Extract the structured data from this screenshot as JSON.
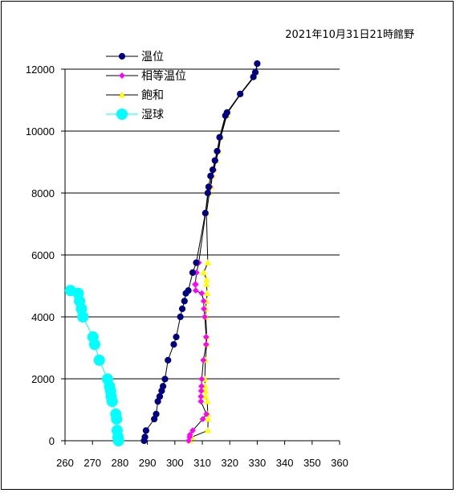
{
  "chart_data": {
    "type": "scatter",
    "title": "2021年10月31日21時館野",
    "xlabel": "",
    "ylabel": "",
    "xlim": [
      260,
      360
    ],
    "ylim": [
      0,
      12000
    ],
    "xticks": [
      "260",
      "270",
      "280",
      "290",
      "300",
      "310",
      "320",
      "330",
      "340",
      "350",
      "360"
    ],
    "yticks": [
      "0",
      "2000",
      "4000",
      "6000",
      "8000",
      "10000",
      "12000"
    ],
    "grid": "horizontal",
    "legend_position": "top-left",
    "series": [
      {
        "name": "温位",
        "color": "#000080",
        "marker": "circle",
        "points": [
          [
            288.8,
            0
          ],
          [
            289.1,
            120
          ],
          [
            289.5,
            330
          ],
          [
            292.5,
            700
          ],
          [
            293.2,
            860
          ],
          [
            293.8,
            1270
          ],
          [
            294.5,
            1430
          ],
          [
            295.2,
            1610
          ],
          [
            295.7,
            1760
          ],
          [
            296.4,
            1990
          ],
          [
            297.5,
            2600
          ],
          [
            299.6,
            3110
          ],
          [
            300.5,
            3350
          ],
          [
            302.0,
            4000
          ],
          [
            302.7,
            4260
          ],
          [
            303.5,
            4510
          ],
          [
            304.0,
            4760
          ],
          [
            304.9,
            4850
          ],
          [
            306.5,
            5430
          ],
          [
            307.8,
            5750
          ],
          [
            311.1,
            7350
          ],
          [
            312.0,
            8000
          ],
          [
            312.3,
            8200
          ],
          [
            313.0,
            8550
          ],
          [
            313.8,
            8750
          ],
          [
            314.6,
            9050
          ],
          [
            315.4,
            9350
          ],
          [
            316.3,
            9800
          ],
          [
            318.4,
            10500
          ],
          [
            319.0,
            10600
          ],
          [
            323.8,
            11200
          ],
          [
            328.6,
            11750
          ],
          [
            329.3,
            11900
          ],
          [
            330.0,
            12180
          ]
        ]
      },
      {
        "name": "相等温位",
        "color": "#ff00ff",
        "marker": "diamond",
        "points": [
          [
            305.0,
            0
          ],
          [
            305.4,
            120
          ],
          [
            305.5,
            190
          ],
          [
            306.5,
            330
          ],
          [
            310.2,
            700
          ],
          [
            311.5,
            860
          ],
          [
            309.5,
            1270
          ],
          [
            309.5,
            1430
          ],
          [
            309.6,
            1610
          ],
          [
            309.7,
            1760
          ],
          [
            309.8,
            1990
          ],
          [
            310.4,
            2600
          ],
          [
            311.4,
            3110
          ],
          [
            311.4,
            3350
          ],
          [
            310.9,
            4000
          ],
          [
            310.6,
            4260
          ],
          [
            310.5,
            4510
          ],
          [
            309.8,
            4760
          ],
          [
            307.6,
            4850
          ],
          [
            307.6,
            5050
          ],
          [
            307.4,
            5050
          ],
          [
            307.9,
            5430
          ],
          [
            308.7,
            5750
          ],
          [
            311.2,
            7350
          ],
          [
            312.2,
            8000
          ],
          [
            312.8,
            8200
          ],
          [
            313.4,
            8550
          ],
          [
            314.1,
            8750
          ],
          [
            314.8,
            9050
          ],
          [
            315.7,
            9350
          ],
          [
            316.5,
            9800
          ],
          [
            318.6,
            10500
          ],
          [
            319.1,
            10600
          ],
          [
            323.9,
            11200
          ],
          [
            328.7,
            11750
          ],
          [
            329.4,
            11900
          ],
          [
            330.0,
            12180
          ]
        ]
      },
      {
        "name": "飽和",
        "color": "#ffff00",
        "marker": "triangle",
        "points": [
          [
            305.5,
            0
          ],
          [
            306.2,
            120
          ],
          [
            312.0,
            330
          ],
          [
            312.1,
            700
          ],
          [
            312.0,
            860
          ],
          [
            311.8,
            1270
          ],
          [
            311.2,
            1430
          ],
          [
            311.1,
            1610
          ],
          [
            311.0,
            1760
          ],
          [
            310.9,
            1990
          ],
          [
            311.1,
            2600
          ],
          [
            311.6,
            3110
          ],
          [
            311.6,
            3350
          ],
          [
            311.3,
            4000
          ],
          [
            311.2,
            4260
          ],
          [
            311.5,
            4510
          ],
          [
            311.8,
            4760
          ],
          [
            311.5,
            5050
          ],
          [
            311.6,
            5200
          ],
          [
            310.5,
            5430
          ],
          [
            312.0,
            5750
          ],
          [
            311.5,
            7350
          ],
          [
            312.6,
            8000
          ],
          [
            313.2,
            8200
          ],
          [
            313.6,
            8550
          ],
          [
            314.3,
            8750
          ],
          [
            315.0,
            9050
          ],
          [
            315.9,
            9350
          ],
          [
            316.7,
            9800
          ],
          [
            318.9,
            10500
          ],
          [
            319.3,
            10600
          ],
          [
            324.0,
            11200
          ],
          [
            328.9,
            11750
          ],
          [
            329.6,
            11900
          ],
          [
            330.0,
            12180
          ]
        ]
      },
      {
        "name": "湿球",
        "color": "#00ffff",
        "marker": "circle-large",
        "points": [
          [
            279.5,
            0
          ],
          [
            279.3,
            120
          ],
          [
            279.0,
            330
          ],
          [
            278.8,
            700
          ],
          [
            278.5,
            860
          ],
          [
            277.2,
            1270
          ],
          [
            276.8,
            1430
          ],
          [
            276.6,
            1610
          ],
          [
            276.2,
            1760
          ],
          [
            275.5,
            1990
          ],
          [
            272.5,
            2600
          ],
          [
            270.8,
            3110
          ],
          [
            270.2,
            3350
          ],
          [
            266.5,
            4000
          ],
          [
            266.0,
            4260
          ],
          [
            265.3,
            4510
          ],
          [
            264.8,
            4760
          ],
          [
            262.0,
            4850
          ]
        ]
      }
    ]
  }
}
